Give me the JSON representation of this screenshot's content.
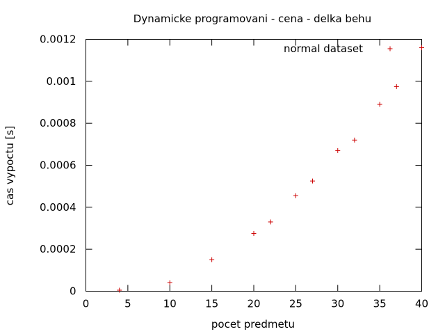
{
  "chart_data": {
    "type": "scatter",
    "title": "Dynamicke programovani - cena - delka behu",
    "xlabel": "pocet predmetu",
    "ylabel": "cas vypoctu [s]",
    "xlim": [
      0,
      40
    ],
    "ylim": [
      0,
      0.0012
    ],
    "xticks": [
      "0",
      "5",
      "10",
      "15",
      "20",
      "25",
      "30",
      "35",
      "40"
    ],
    "yticks": [
      "0",
      "0.0002",
      "0.0004",
      "0.0006",
      "0.0008",
      "0.001",
      "0.0012"
    ],
    "grid": false,
    "legend_position": "top-right",
    "series": [
      {
        "name": "normal dataset",
        "color": "#cc0000",
        "marker": "plus",
        "points": [
          {
            "x": 4,
            "y": 5e-06
          },
          {
            "x": 10,
            "y": 4e-05
          },
          {
            "x": 15,
            "y": 0.00015
          },
          {
            "x": 20,
            "y": 0.000275
          },
          {
            "x": 22,
            "y": 0.00033
          },
          {
            "x": 25,
            "y": 0.000455
          },
          {
            "x": 27,
            "y": 0.000525
          },
          {
            "x": 30,
            "y": 0.00067
          },
          {
            "x": 32,
            "y": 0.00072
          },
          {
            "x": 35,
            "y": 0.00089
          },
          {
            "x": 37,
            "y": 0.000975
          },
          {
            "x": 40,
            "y": 0.00116
          }
        ]
      }
    ]
  }
}
